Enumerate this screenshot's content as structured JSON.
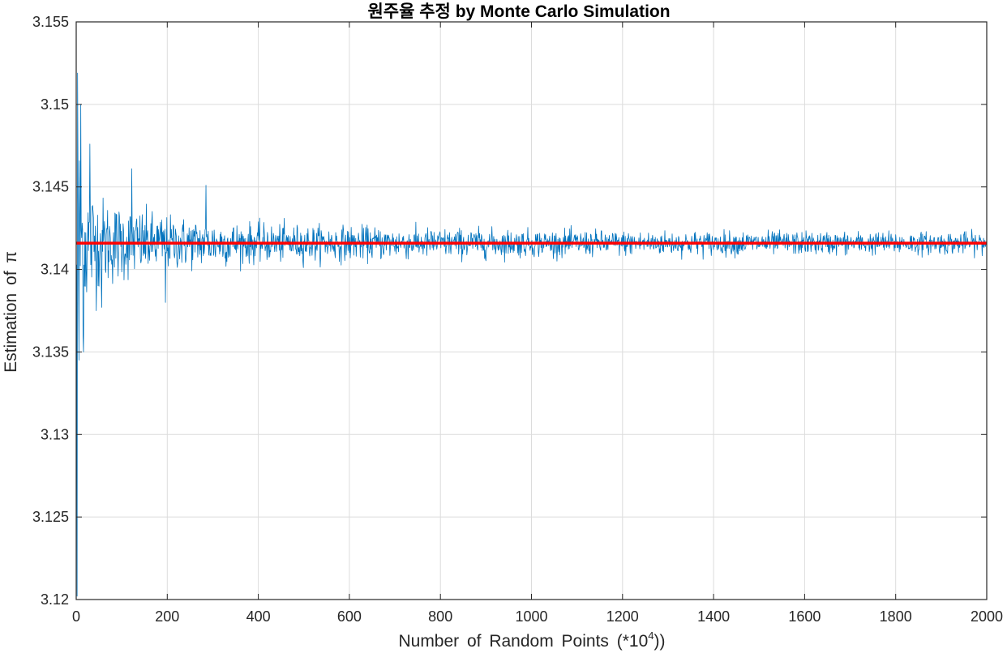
{
  "chart_data": {
    "type": "line",
    "title": "원주율 추정 by Monte Carlo Simulation",
    "xlabel_prefix": "Number of Random Points (*10",
    "xlabel_exponent": "4",
    "xlabel_suffix": "))",
    "ylabel": "Estimation of π",
    "xlim": [
      0,
      2000
    ],
    "ylim": [
      3.12,
      3.155
    ],
    "xticks": [
      0,
      200,
      400,
      600,
      800,
      1000,
      1200,
      1400,
      1600,
      1800,
      2000
    ],
    "yticks": [
      3.12,
      3.125,
      3.13,
      3.135,
      3.14,
      3.145,
      3.15,
      3.155
    ],
    "ytick_labels": [
      "3.12",
      "3.125",
      "3.13",
      "3.135",
      "3.14",
      "3.145",
      "3.15",
      "3.155"
    ],
    "grid": true,
    "series": [
      {
        "description": "Monte Carlo estimate per trial (noisy, converging)",
        "color": "#0072BD",
        "x_start": 1,
        "x_end": 2000,
        "center": 3.141593,
        "envelope": [
          [
            1,
            0.0105
          ],
          [
            5,
            0.0095
          ],
          [
            20,
            0.0055
          ],
          [
            50,
            0.0035
          ],
          [
            100,
            0.0028
          ],
          [
            200,
            0.002
          ],
          [
            400,
            0.0014
          ],
          [
            800,
            0.0011
          ],
          [
            1200,
            0.0009
          ],
          [
            2000,
            0.0008
          ]
        ],
        "extremes": [
          [
            2,
            3.1202
          ],
          [
            3,
            3.1519
          ],
          [
            6,
            3.1345
          ],
          [
            10,
            3.15
          ],
          [
            16,
            3.135
          ],
          [
            30,
            3.1476
          ],
          [
            56,
            3.1377
          ],
          [
            122,
            3.1461
          ],
          [
            196,
            3.138
          ],
          [
            285,
            3.1451
          ]
        ]
      },
      {
        "description": "true value of pi",
        "color": "#FF0000",
        "value": 3.1415926
      }
    ]
  }
}
